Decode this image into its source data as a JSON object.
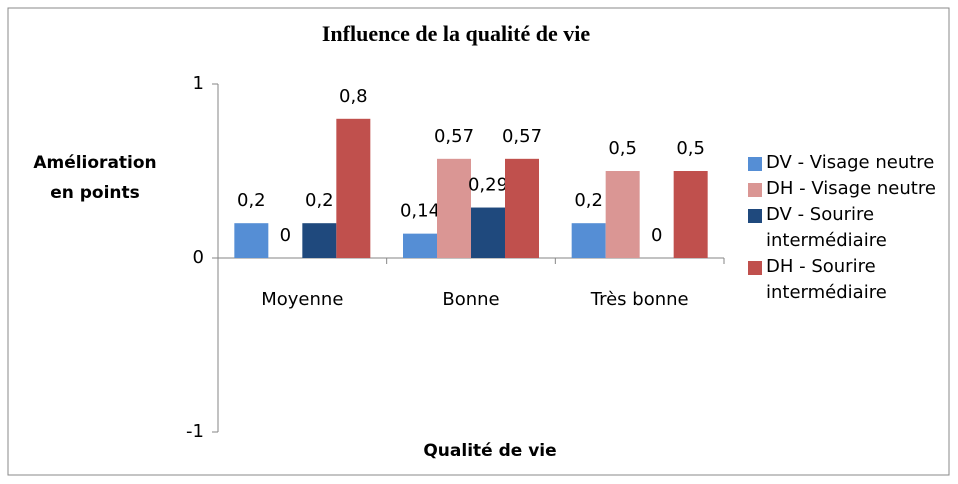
{
  "chart_data": {
    "type": "bar",
    "title": "Influence de la qualité de vie",
    "x_label": "Qualité de vie",
    "y_label": "Amélioration en points",
    "categories": [
      "Moyenne",
      "Bonne",
      "Très bonne"
    ],
    "series": [
      {
        "name": "DV - Visage neutre",
        "color": "#558ed5",
        "values": [
          0.2,
          0.14,
          0.2
        ],
        "value_labels": [
          "0,2",
          "0,14",
          "0,2"
        ]
      },
      {
        "name": "DH - Visage neutre",
        "color": "#da9694",
        "values": [
          0,
          0.57,
          0.5
        ],
        "value_labels": [
          "0",
          "0,57",
          "0,5"
        ]
      },
      {
        "name": "DV - Sourire intermédiaire",
        "color": "#1f497d",
        "values": [
          0.2,
          0.29,
          0
        ],
        "value_labels": [
          "0,2",
          "0,29",
          "0"
        ]
      },
      {
        "name": "DH - Sourire intermédiaire",
        "color": "#c0504d",
        "values": [
          0.8,
          0.57,
          0.5
        ],
        "value_labels": [
          "0,8",
          "0,57",
          "0,5"
        ]
      }
    ],
    "ylim": [
      -1,
      1
    ],
    "yticks": [
      -1,
      0,
      1
    ],
    "grid": false,
    "legend": "right"
  }
}
